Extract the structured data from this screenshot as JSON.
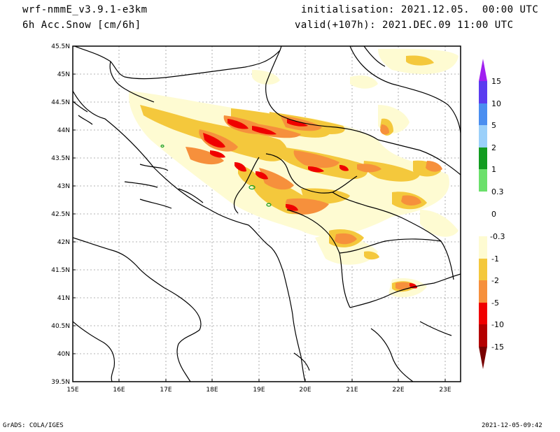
{
  "header": {
    "model": "wrf-nmmE_v3.9.1-e3km",
    "field": "6h Acc.Snow [cm/6h]",
    "init": "initialisation: 2021.12.05.  00:00 UTC",
    "valid": "valid(+107h): 2021.DEC.09 11:00 UTC"
  },
  "footer": {
    "left": "GrADS: COLA/IGES",
    "right": "2021-12-05-09:42"
  },
  "map": {
    "lat_labels": [
      "45.5N",
      "45N",
      "44.5N",
      "44N",
      "43.5N",
      "43N",
      "42.5N",
      "42N",
      "41.5N",
      "41N",
      "40.5N",
      "40N",
      "39.5N"
    ],
    "lon_labels": [
      "15E",
      "16E",
      "17E",
      "18E",
      "19E",
      "20E",
      "21E",
      "22E",
      "23E"
    ]
  },
  "colorbar": {
    "labels": [
      "15",
      "10",
      "5",
      "2",
      "1",
      "0.3",
      "0",
      "-0.3",
      "-1",
      "-2",
      "-5",
      "-10",
      "-15"
    ],
    "colors": {
      "top_arrow": "#a020f0",
      "c15": "#5a3cf0",
      "c10": "#4a8ef0",
      "c5": "#9bd0fa",
      "c2": "#129c20",
      "c1": "#6be06b",
      "c03": "#ffffff",
      "cm03": "#fefbd2",
      "cm1": "#f4c83c",
      "cm2": "#f6903c",
      "cm5": "#f00000",
      "cm10": "#b40000",
      "bot_arrow": "#780000"
    }
  }
}
